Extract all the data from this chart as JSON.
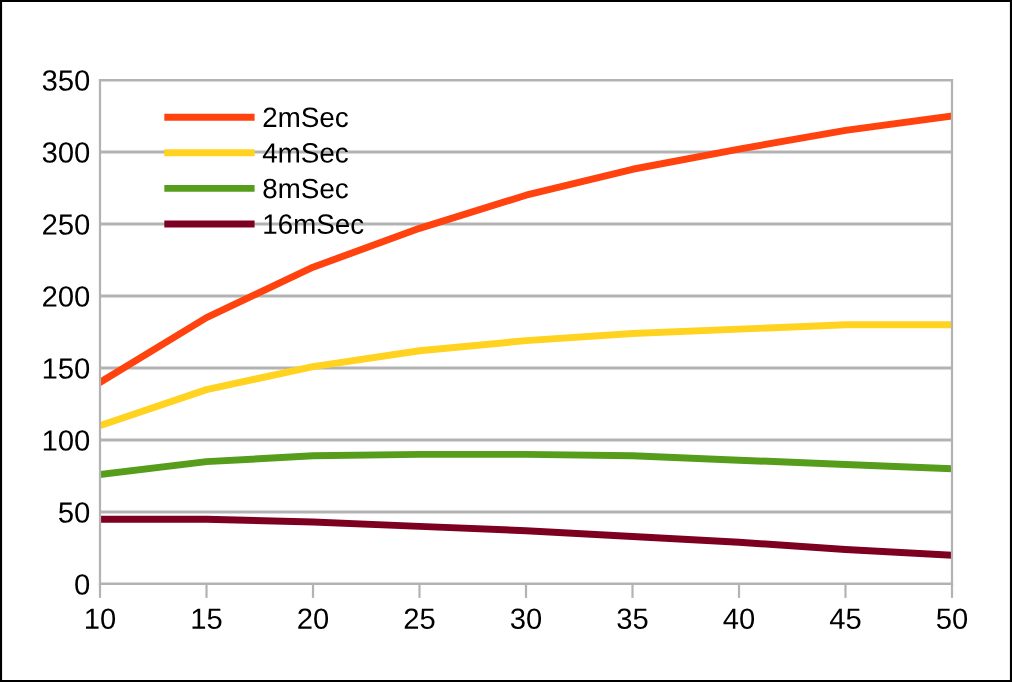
{
  "chart_data": {
    "type": "line",
    "x": [
      10,
      15,
      20,
      25,
      30,
      35,
      40,
      45,
      50
    ],
    "series": [
      {
        "name": "2mSec",
        "color": "#ff420e",
        "values": [
          140,
          185,
          220,
          247,
          270,
          288,
          302,
          315,
          325
        ]
      },
      {
        "name": "4mSec",
        "color": "#ffd320",
        "values": [
          110,
          135,
          151,
          162,
          169,
          174,
          177,
          180,
          180
        ]
      },
      {
        "name": "8mSec",
        "color": "#579d1c",
        "values": [
          76,
          85,
          89,
          90,
          90,
          89,
          86,
          83,
          80
        ]
      },
      {
        "name": "16mSec",
        "color": "#7e0021",
        "values": [
          45,
          45,
          43,
          40,
          37,
          33,
          29,
          24,
          20
        ]
      }
    ],
    "xlim": [
      10,
      50
    ],
    "xticks": [
      10,
      15,
      20,
      25,
      30,
      35,
      40,
      45,
      50
    ],
    "ylim": [
      0,
      350
    ],
    "yticks": [
      0,
      50,
      100,
      150,
      200,
      250,
      300,
      350
    ],
    "grid": "y",
    "legend": "top left",
    "marker": "none",
    "line_style": "solid"
  }
}
